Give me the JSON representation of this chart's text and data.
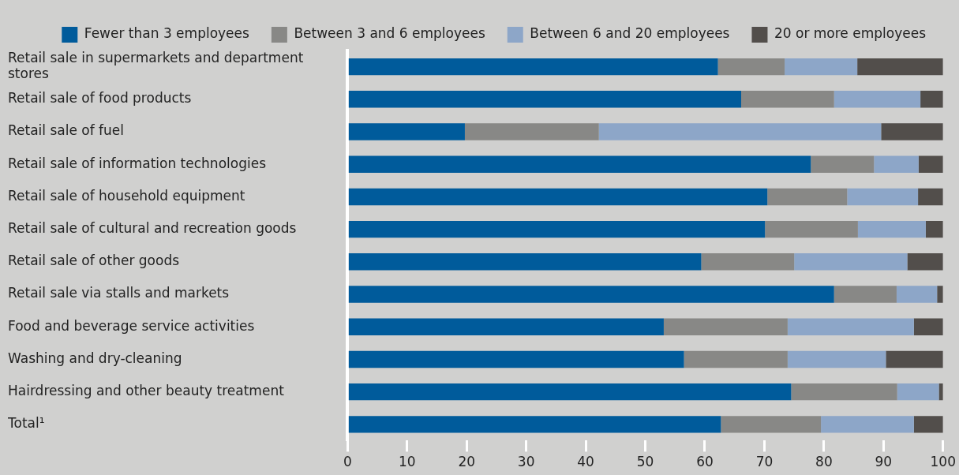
{
  "chart_data": {
    "type": "bar",
    "orientation": "horizontal",
    "stacked": true,
    "categories": [
      "Retail sale in supermarkets and department stores",
      "Retail sale of food products",
      "Retail sale of fuel",
      "Retail sale of information technologies",
      "Retail sale of household equipment",
      "Retail sale of cultural and recreation goods",
      "Retail sale of other goods",
      "Retail sale via stalls and markets",
      "Food and beverage service activities",
      "Washing and dry-cleaning",
      "Hairdressing and other beauty treatment",
      "Total¹"
    ],
    "series": [
      {
        "name": "Fewer than 3 employees",
        "color": "#005b9b",
        "values": [
          62.2,
          66.1,
          19.7,
          77.8,
          70.5,
          70.1,
          59.4,
          81.7,
          53.1,
          56.5,
          74.5,
          62.7
        ]
      },
      {
        "name": "Between 3 and 6 employees",
        "color": "#888886",
        "values": [
          11.2,
          15.6,
          22.5,
          10.6,
          13.4,
          15.6,
          15.6,
          10.5,
          20.8,
          17.4,
          17.8,
          16.8
        ]
      },
      {
        "name": "Between 6 and 20 employees",
        "color": "#8da6c8",
        "values": [
          12.2,
          14.5,
          47.4,
          7.5,
          11.9,
          11.4,
          19.0,
          6.8,
          21.2,
          16.5,
          7.0,
          15.6
        ]
      },
      {
        "name": "20 or more employees",
        "color": "#524e4b",
        "values": [
          14.4,
          3.8,
          10.4,
          4.1,
          4.2,
          2.9,
          6.0,
          1.0,
          4.9,
          9.6,
          0.7,
          4.9
        ]
      }
    ],
    "xlim": [
      0,
      100
    ],
    "xticks": [
      0,
      10,
      20,
      30,
      40,
      50,
      60,
      70,
      80,
      90,
      100
    ],
    "grid": false,
    "legend": "top"
  }
}
